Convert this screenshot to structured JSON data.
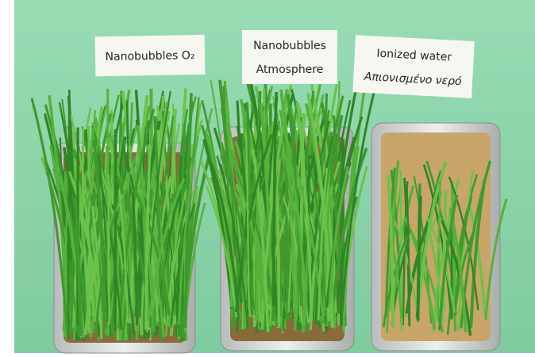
{
  "labels": [
    {
      "lines": [
        "Nanobubbles O₂"
      ]
    },
    {
      "lines": [
        "Nanobubbles",
        "Atmosphere"
      ]
    },
    {
      "lines": [
        "Ionized water",
        "Απιονισμένο νερό"
      ]
    }
  ]
}
